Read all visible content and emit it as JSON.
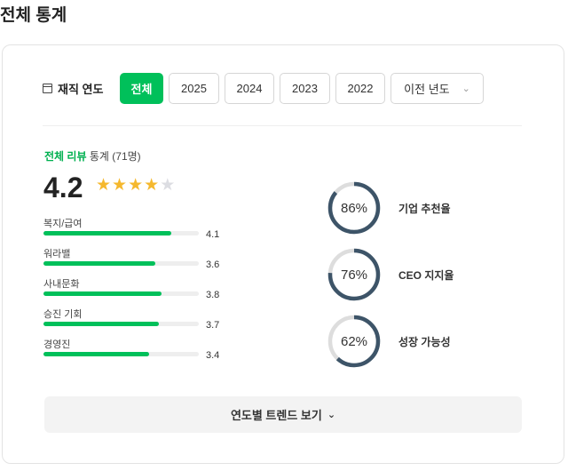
{
  "title": "전체 통계",
  "filter": {
    "label": "재직 연도",
    "options": [
      "전체",
      "2025",
      "2024",
      "2023",
      "2022"
    ],
    "selected": "전체",
    "dropdown_label": "이전 년도"
  },
  "summary": {
    "label_green": "전체 리뷰",
    "label_rest": "통계",
    "count": "(71명)",
    "score": "4.2",
    "rating": 4.2,
    "max_rating": 5
  },
  "categories": [
    {
      "label": "복지/급여",
      "value": "4.1"
    },
    {
      "label": "워라밸",
      "value": "3.6"
    },
    {
      "label": "사내문화",
      "value": "3.8"
    },
    {
      "label": "승진 기회",
      "value": "3.7"
    },
    {
      "label": "경영진",
      "value": "3.4"
    }
  ],
  "rings": [
    {
      "pct": "86%",
      "value": 86,
      "label": "기업 추천율"
    },
    {
      "pct": "76%",
      "value": 76,
      "label": "CEO 지지율"
    },
    {
      "pct": "62%",
      "value": 62,
      "label": "성장 가능성"
    }
  ],
  "trend_button": "연도별 트렌드 보기",
  "colors": {
    "accent": "#00c05a",
    "ring": "#3d5468",
    "ring_track": "#dddddd",
    "star": "#f5b82e",
    "star_empty": "#dcdde2"
  }
}
